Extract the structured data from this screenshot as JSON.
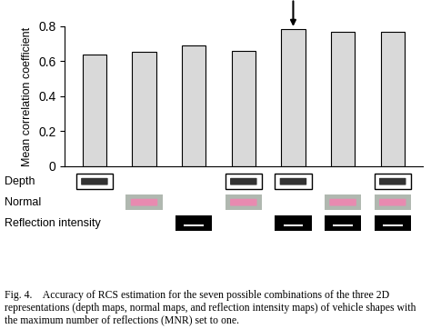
{
  "chart_data": {
    "type": "bar",
    "y_label": "Mean correlation coefficient",
    "annotation": "Maximum",
    "categories": [
      null,
      null,
      null,
      null,
      null,
      null,
      null
    ],
    "values": [
      0.64,
      0.655,
      0.69,
      0.66,
      0.785,
      0.77,
      0.77
    ],
    "color": "#d9d9d9",
    "ylim": [
      0,
      0.8
    ],
    "yticks": [
      0,
      0.2,
      0.4,
      0.6,
      0.8
    ],
    "grid": false,
    "input_rows": [
      {
        "label": "Depth",
        "used": [
          true,
          false,
          false,
          true,
          true,
          false,
          true
        ]
      },
      {
        "label": "Normal",
        "used": [
          false,
          true,
          false,
          true,
          false,
          true,
          true
        ]
      },
      {
        "label": "Reflection intensity",
        "used": [
          false,
          false,
          true,
          false,
          true,
          true,
          true
        ]
      }
    ],
    "caption": "Fig. 4.    Accuracy of RCS estimation for the seven possible combinations of the three 2D representations (depth maps, normal maps, and reflection intensity maps) of vehicle shapes with the maximum number of reflections (MNR) set to one."
  }
}
